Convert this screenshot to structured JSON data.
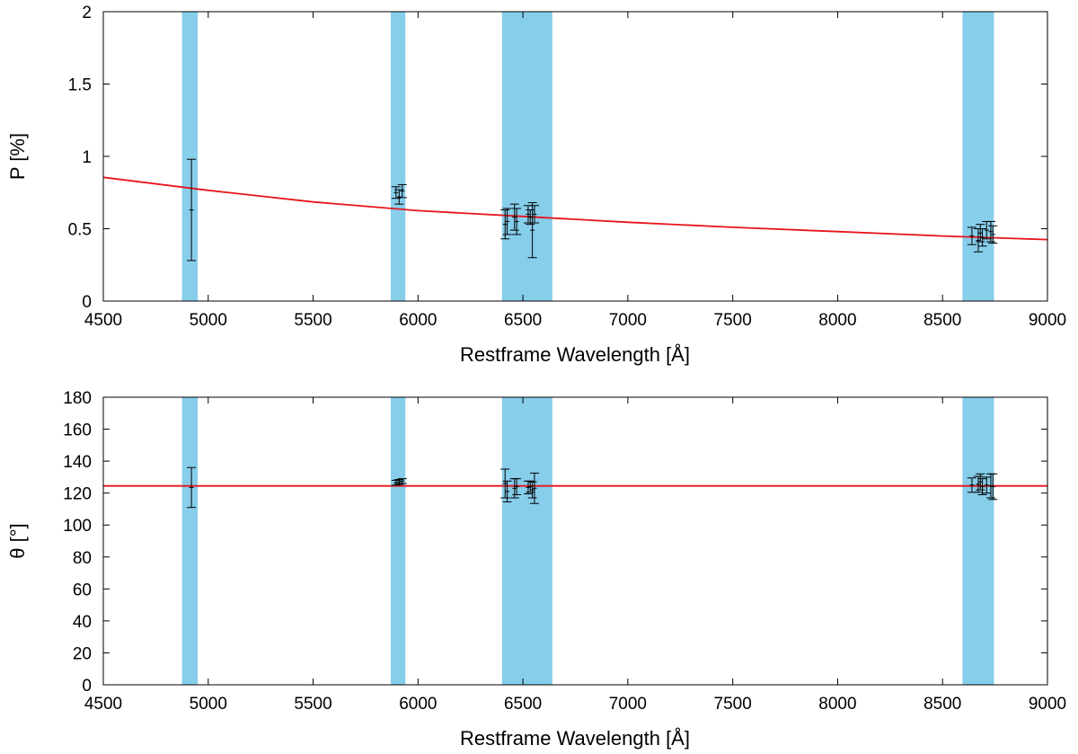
{
  "colors": {
    "band": "#87ceeb",
    "fit_line": "#e8141c",
    "points": "#000000",
    "axes": "#000000"
  },
  "chart_data": [
    {
      "type": "scatter",
      "title": "",
      "xlabel": "Restframe Wavelength [Å]",
      "ylabel": "P [%]",
      "xlim": [
        4500,
        9000
      ],
      "ylim": [
        0,
        2
      ],
      "xticks": [
        "4500",
        "5000",
        "5500",
        "6000",
        "6500",
        "7000",
        "7500",
        "8000",
        "8500",
        "9000"
      ],
      "yticks": [
        "0",
        "0.5",
        "1",
        "1.5",
        "2"
      ],
      "grid": false,
      "legend": "none",
      "shaded_bands": [
        [
          4875,
          4950
        ],
        [
          5870,
          5940
        ],
        [
          6400,
          6640
        ],
        [
          8595,
          8745
        ]
      ],
      "fit_line": {
        "x": [
          4500,
          5000,
          5500,
          6000,
          6500,
          7000,
          7500,
          8000,
          8500,
          9000
        ],
        "y": [
          0.855,
          0.765,
          0.685,
          0.625,
          0.585,
          0.545,
          0.51,
          0.48,
          0.45,
          0.425
        ]
      },
      "points": [
        {
          "x": 4920,
          "y": 0.63,
          "err": 0.35
        },
        {
          "x": 5895,
          "y": 0.75,
          "err": 0.04
        },
        {
          "x": 5910,
          "y": 0.72,
          "err": 0.05
        },
        {
          "x": 5925,
          "y": 0.76,
          "err": 0.045
        },
        {
          "x": 6415,
          "y": 0.53,
          "err": 0.1
        },
        {
          "x": 6425,
          "y": 0.55,
          "err": 0.09
        },
        {
          "x": 6460,
          "y": 0.58,
          "err": 0.09
        },
        {
          "x": 6470,
          "y": 0.55,
          "err": 0.09
        },
        {
          "x": 6525,
          "y": 0.6,
          "err": 0.06
        },
        {
          "x": 6535,
          "y": 0.58,
          "err": 0.05
        },
        {
          "x": 6545,
          "y": 0.49,
          "err": 0.19
        },
        {
          "x": 6555,
          "y": 0.6,
          "err": 0.06
        },
        {
          "x": 8640,
          "y": 0.45,
          "err": 0.06
        },
        {
          "x": 8670,
          "y": 0.42,
          "err": 0.08
        },
        {
          "x": 8680,
          "y": 0.47,
          "err": 0.06
        },
        {
          "x": 8690,
          "y": 0.44,
          "err": 0.06
        },
        {
          "x": 8710,
          "y": 0.49,
          "err": 0.06
        },
        {
          "x": 8730,
          "y": 0.48,
          "err": 0.07
        },
        {
          "x": 8740,
          "y": 0.46,
          "err": 0.06
        }
      ]
    },
    {
      "type": "scatter",
      "title": "",
      "xlabel": "Restframe Wavelength [Å]",
      "ylabel": "θ [°]",
      "xlim": [
        4500,
        9000
      ],
      "ylim": [
        0,
        180
      ],
      "xticks": [
        "4500",
        "5000",
        "5500",
        "6000",
        "6500",
        "7000",
        "7500",
        "8000",
        "8500",
        "9000"
      ],
      "yticks": [
        "0",
        "20",
        "40",
        "60",
        "80",
        "100",
        "120",
        "140",
        "160",
        "180"
      ],
      "grid": false,
      "legend": "none",
      "shaded_bands": [
        [
          4875,
          4950
        ],
        [
          5870,
          5940
        ],
        [
          6400,
          6640
        ],
        [
          8595,
          8745
        ]
      ],
      "fit_line": {
        "x": [
          4500,
          9000
        ],
        "y": [
          124.5,
          124.5
        ]
      },
      "points": [
        {
          "x": 4920,
          "y": 123.5,
          "err": 12.5
        },
        {
          "x": 5895,
          "y": 126.5,
          "err": 1.5
        },
        {
          "x": 5910,
          "y": 127.0,
          "err": 1.5
        },
        {
          "x": 5925,
          "y": 127.5,
          "err": 1.5
        },
        {
          "x": 6415,
          "y": 126.0,
          "err": 9.0
        },
        {
          "x": 6425,
          "y": 121.0,
          "err": 6.5
        },
        {
          "x": 6460,
          "y": 123.0,
          "err": 6.0
        },
        {
          "x": 6470,
          "y": 124.0,
          "err": 5.0
        },
        {
          "x": 6525,
          "y": 123.5,
          "err": 4.0
        },
        {
          "x": 6535,
          "y": 124.0,
          "err": 3.5
        },
        {
          "x": 6545,
          "y": 122.0,
          "err": 5.0
        },
        {
          "x": 6555,
          "y": 123.0,
          "err": 9.5
        },
        {
          "x": 8640,
          "y": 125.0,
          "err": 4.5
        },
        {
          "x": 8670,
          "y": 125.5,
          "err": 5.0
        },
        {
          "x": 8680,
          "y": 127.0,
          "err": 5.0
        },
        {
          "x": 8690,
          "y": 124.0,
          "err": 5.0
        },
        {
          "x": 8710,
          "y": 125.0,
          "err": 5.0
        },
        {
          "x": 8730,
          "y": 124.5,
          "err": 7.5
        },
        {
          "x": 8740,
          "y": 124.0,
          "err": 8.0
        }
      ]
    }
  ]
}
